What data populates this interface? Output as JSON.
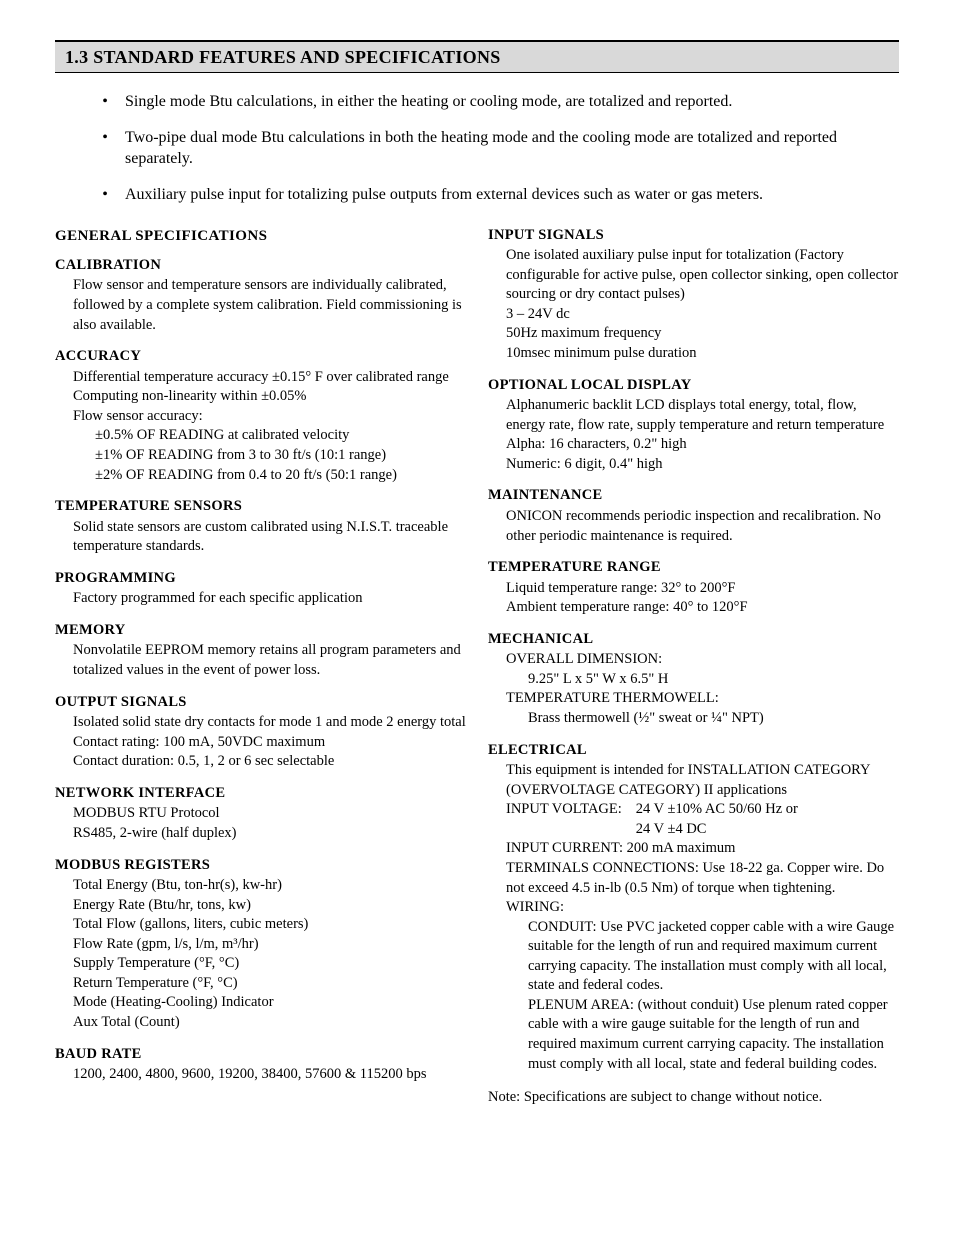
{
  "header": "1.3  STANDARD FEATURES AND SPECIFICATIONS",
  "bullets": [
    "Single mode Btu calculations, in either the heating or cooling mode, are totalized and reported.",
    "Two-pipe dual mode Btu calculations in both the heating mode and the cooling mode are totalized and reported separately.",
    "Auxiliary pulse input for totalizing pulse outputs from external devices such as water or gas meters."
  ],
  "left": {
    "heading": "GENERAL SPECIFICATIONS",
    "calibration": {
      "title": "CALIBRATION",
      "body": "Flow sensor and temperature sensors are individually calibrated, followed by a complete system calibration. Field commissioning is also available."
    },
    "accuracy": {
      "title": "ACCURACY",
      "l1": "Differential temperature accuracy ±0.15° F over calibrated range",
      "l2": "Computing non-linearity within ±0.05%",
      "l3": "Flow sensor accuracy:",
      "s1": "±0.5% OF READING at calibrated velocity",
      "s2": "±1% OF READING from 3 to 30 ft/s (10:1 range)",
      "s3": "±2% OF READING from 0.4 to 20 ft/s (50:1 range)"
    },
    "temp_sensors": {
      "title": "TEMPERATURE SENSORS",
      "body": "Solid state sensors are custom calibrated using N.I.S.T. traceable temperature standards."
    },
    "programming": {
      "title": "PROGRAMMING",
      "body": "Factory programmed for each specific application"
    },
    "memory": {
      "title": "MEMORY",
      "body": "Nonvolatile EEPROM memory retains all program parameters and totalized values in the event of power loss."
    },
    "output": {
      "title": "OUTPUT SIGNALS",
      "l1": "Isolated solid state dry contacts for mode 1 and mode 2 energy total",
      "l2": "Contact rating: 100 mA, 50VDC maximum",
      "l3": "Contact duration: 0.5, 1, 2 or 6 sec selectable"
    },
    "network": {
      "title": "NETWORK INTERFACE",
      "l1": "MODBUS RTU Protocol",
      "l2": "RS485, 2-wire (half duplex)"
    },
    "modbus": {
      "title": "MODBUS REGISTERS",
      "l1": "Total Energy (Btu, ton-hr(s), kw-hr)",
      "l2": "Energy Rate (Btu/hr, tons, kw)",
      "l3": "Total Flow (gallons, liters, cubic meters)",
      "l4": "Flow Rate (gpm, l/s, l/m, m³/hr)",
      "l5": "Supply  Temperature (°F, °C)",
      "l6": "Return Temperature (°F, °C)",
      "l7": "Mode (Heating-Cooling) Indicator",
      "l8": "Aux Total (Count)"
    },
    "baud": {
      "title": "BAUD RATE",
      "body": "1200, 2400, 4800, 9600, 19200, 38400, 57600 & 115200 bps"
    }
  },
  "right": {
    "input": {
      "title": "INPUT SIGNALS",
      "l1": "One isolated auxiliary pulse input for totalization (Factory configurable for active pulse, open collector sinking, open collector sourcing or dry contact pulses)",
      "l2": "3 – 24V dc",
      "l3": "50Hz maximum frequency",
      "l4": "10msec minimum pulse duration"
    },
    "display": {
      "title": "OPTIONAL LOCAL DISPLAY",
      "l1": "Alphanumeric backlit LCD displays total energy, total, flow, energy rate, flow rate, supply temperature and return temperature",
      "l2": "Alpha: 16 characters, 0.2\" high",
      "l3": "Numeric: 6 digit, 0.4\" high"
    },
    "maint": {
      "title": "MAINTENANCE",
      "body": "ONICON recommends periodic inspection and recalibration. No other periodic maintenance is required."
    },
    "temp_range": {
      "title": "TEMPERATURE RANGE",
      "l1": "Liquid temperature range:  32° to 200°F",
      "l2": "Ambient temperature range:  40° to 120°F"
    },
    "mech": {
      "title": "MECHANICAL",
      "l1": "OVERALL DIMENSION:",
      "l1s": "9.25\" L x 5\" W x 6.5\" H",
      "l2": "TEMPERATURE THERMOWELL:",
      "l2s": "Brass thermowell (½\" sweat or ¼\" NPT)"
    },
    "elec": {
      "title": "ELECTRICAL",
      "l1": "This equipment is intended for INSTALLATION CATEGORY (OVERVOLTAGE CATEGORY) II applications",
      "iv_label": "INPUT VOLTAGE:",
      "iv1": "24 V ±10%  AC 50/60 Hz or",
      "iv2": "24 V ±4 DC",
      "ic": "INPUT CURRENT: 200 mA maximum",
      "tc": "TERMINALS CONNECTIONS: Use 18-22 ga. Copper wire. Do not exceed 4.5 in-lb (0.5 Nm) of torque when tightening.",
      "w": "WIRING:",
      "w1": "CONDUIT: Use PVC jacketed copper cable with a wire Gauge suitable for the length of run and required maximum current carrying capacity. The installation must comply with all local, state and federal codes.",
      "w2": "PLENUM AREA: (without conduit) Use plenum rated copper cable with a wire gauge suitable for the length  of run and required maximum current carrying capacity. The installation must comply with all local, state and federal building codes."
    },
    "note": "Note:  Specifications are subject to change without notice."
  }
}
